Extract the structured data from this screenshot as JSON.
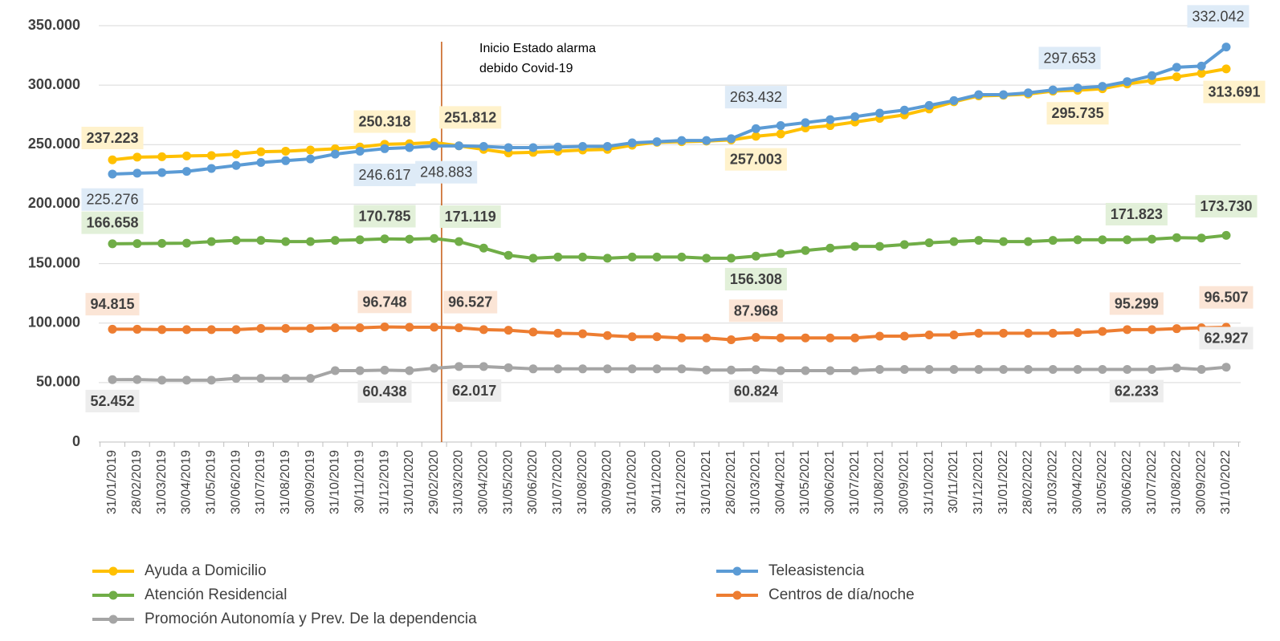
{
  "chart_data": {
    "type": "line",
    "annotation": [
      "Inicio Estado alarma",
      "debido Covid-19"
    ],
    "categories": [
      "31/01/2019",
      "28/02/2019",
      "31/03/2019",
      "30/04/2019",
      "31/05/2019",
      "30/06/2019",
      "31/07/2019",
      "31/08/2019",
      "30/09/2019",
      "31/10/2019",
      "30/11/2019",
      "31/12/2019",
      "31/01/2020",
      "29/02/2020",
      "31/03/2020",
      "30/04/2020",
      "31/05/2020",
      "30/06/2020",
      "31/07/2020",
      "31/08/2020",
      "30/09/2020",
      "31/10/2020",
      "30/11/2020",
      "31/12/2020",
      "31/01/2021",
      "28/02/2021",
      "31/03/2021",
      "30/04/2021",
      "31/05/2021",
      "30/06/2021",
      "31/07/2021",
      "31/08/2021",
      "30/09/2021",
      "31/10/2021",
      "30/11/2021",
      "31/12/2021",
      "31/01/2022",
      "28/02/2022",
      "31/03/2022",
      "30/04/2022",
      "31/05/2022",
      "30/06/2022",
      "31/07/2022",
      "31/08/2022",
      "30/09/2022",
      "31/10/2022"
    ],
    "ylim": [
      0,
      350000
    ],
    "yticks": [
      {
        "value": 0,
        "label": "0"
      },
      {
        "value": 50000,
        "label": "50.000"
      },
      {
        "value": 100000,
        "label": "100.000"
      },
      {
        "value": 150000,
        "label": "150.000"
      },
      {
        "value": 200000,
        "label": "200.000"
      },
      {
        "value": 250000,
        "label": "250.000"
      },
      {
        "value": 300000,
        "label": "300.000"
      },
      {
        "value": 350000,
        "label": "350.000"
      }
    ],
    "grid": true,
    "legend": "bottom",
    "series": [
      {
        "name": "Ayuda a Domicilio",
        "color": "#FFC000",
        "values": [
          237223,
          239500,
          239800,
          240500,
          240800,
          242000,
          244000,
          244500,
          245500,
          246500,
          248000,
          250318,
          250800,
          251812,
          249000,
          246000,
          243000,
          243500,
          244500,
          245500,
          246000,
          249500,
          252000,
          252500,
          253000,
          254000,
          257003,
          259000,
          264000,
          266000,
          269000,
          272000,
          275000,
          280000,
          286000,
          291000,
          291500,
          292500,
          295000,
          295735,
          297000,
          301000,
          304000,
          307000,
          310000,
          313691
        ],
        "value_labels": [
          "237.223",
          null,
          null,
          null,
          null,
          null,
          null,
          null,
          null,
          null,
          null,
          "250.318",
          null,
          "251.812",
          null,
          null,
          null,
          null,
          null,
          null,
          null,
          null,
          null,
          null,
          null,
          null,
          "257.003",
          null,
          null,
          null,
          null,
          null,
          null,
          null,
          null,
          null,
          null,
          null,
          null,
          "295.735",
          null,
          null,
          null,
          null,
          null,
          "313.691"
        ]
      },
      {
        "name": "Teleasistencia",
        "color": "#5B9BD5",
        "values": [
          225276,
          226000,
          226500,
          227500,
          230000,
          232500,
          235000,
          236500,
          238000,
          242000,
          244500,
          246617,
          247500,
          248883,
          249000,
          248500,
          247500,
          247500,
          248000,
          248500,
          248500,
          251500,
          252500,
          253500,
          253500,
          255000,
          263432,
          266000,
          268500,
          271000,
          273500,
          276500,
          279000,
          283000,
          287000,
          292000,
          292000,
          293500,
          296000,
          297653,
          299000,
          303000,
          308000,
          315000,
          316000,
          332042
        ],
        "value_labels": [
          "225.276",
          null,
          null,
          null,
          null,
          null,
          null,
          null,
          null,
          null,
          null,
          "246.617",
          null,
          "248.883",
          null,
          null,
          null,
          null,
          null,
          null,
          null,
          null,
          null,
          null,
          null,
          null,
          "263.432",
          null,
          null,
          null,
          null,
          null,
          null,
          null,
          null,
          null,
          null,
          null,
          null,
          "297.653",
          null,
          null,
          null,
          null,
          null,
          "332.042"
        ]
      },
      {
        "name": "Atención Residencial",
        "color": "#70AD47",
        "values": [
          166658,
          166800,
          167000,
          167200,
          168500,
          169500,
          169500,
          168500,
          168500,
          169500,
          170000,
          170785,
          170500,
          171119,
          168500,
          163000,
          157000,
          154500,
          155500,
          155500,
          154500,
          155500,
          155500,
          155500,
          154500,
          154500,
          156308,
          158500,
          161000,
          163000,
          164500,
          164500,
          166000,
          167500,
          168500,
          169500,
          168500,
          168500,
          169500,
          170000,
          170000,
          170000,
          170500,
          171823,
          171500,
          173730
        ],
        "value_labels": [
          "166.658",
          null,
          null,
          null,
          null,
          null,
          null,
          null,
          null,
          null,
          null,
          "170.785",
          null,
          "171.119",
          null,
          null,
          null,
          null,
          null,
          null,
          null,
          null,
          null,
          null,
          null,
          null,
          "156.308",
          null,
          null,
          null,
          null,
          null,
          null,
          null,
          null,
          null,
          null,
          null,
          null,
          null,
          null,
          null,
          null,
          "171.823",
          null,
          "173.730"
        ]
      },
      {
        "name": "Centros de día/noche",
        "color": "#ED7D31",
        "values": [
          94815,
          94800,
          94500,
          94500,
          94500,
          94500,
          95500,
          95500,
          95500,
          96000,
          96000,
          96748,
          96500,
          96527,
          96000,
          94500,
          94000,
          92500,
          91500,
          91000,
          89500,
          88500,
          88500,
          87500,
          87500,
          86000,
          87968,
          87500,
          87500,
          87500,
          87500,
          89000,
          89000,
          90000,
          90000,
          91500,
          91500,
          91500,
          91500,
          92000,
          93000,
          94500,
          94500,
          95299,
          96000,
          96507
        ],
        "value_labels": [
          "94.815",
          null,
          null,
          null,
          null,
          null,
          null,
          null,
          null,
          null,
          null,
          "96.748",
          null,
          "96.527",
          null,
          null,
          null,
          null,
          null,
          null,
          null,
          null,
          null,
          null,
          null,
          null,
          "87.968",
          null,
          null,
          null,
          null,
          null,
          null,
          null,
          null,
          null,
          null,
          null,
          null,
          null,
          null,
          null,
          null,
          "95.299",
          null,
          "96.507"
        ]
      },
      {
        "name": "Promoción Autonomía y Prev. De la dependencia",
        "color": "#A5A5A5",
        "values": [
          52452,
          52500,
          52000,
          52000,
          52000,
          53500,
          53500,
          53500,
          53500,
          60000,
          60000,
          60438,
          60000,
          62017,
          63500,
          63500,
          62500,
          61500,
          61500,
          61500,
          61500,
          61500,
          61500,
          61500,
          60500,
          60500,
          60824,
          60000,
          60000,
          60000,
          60000,
          61000,
          61000,
          61000,
          61000,
          61000,
          61000,
          61000,
          61000,
          61000,
          61000,
          61000,
          61000,
          62233,
          61000,
          62927
        ],
        "value_labels": [
          "52.452",
          null,
          null,
          null,
          null,
          null,
          null,
          null,
          null,
          null,
          null,
          "60.438",
          null,
          "62.017",
          null,
          null,
          null,
          null,
          null,
          null,
          null,
          null,
          null,
          null,
          null,
          null,
          "60.824",
          null,
          null,
          null,
          null,
          null,
          null,
          null,
          null,
          null,
          null,
          null,
          null,
          null,
          null,
          null,
          null,
          "62.233",
          null,
          "62.927"
        ]
      }
    ]
  }
}
